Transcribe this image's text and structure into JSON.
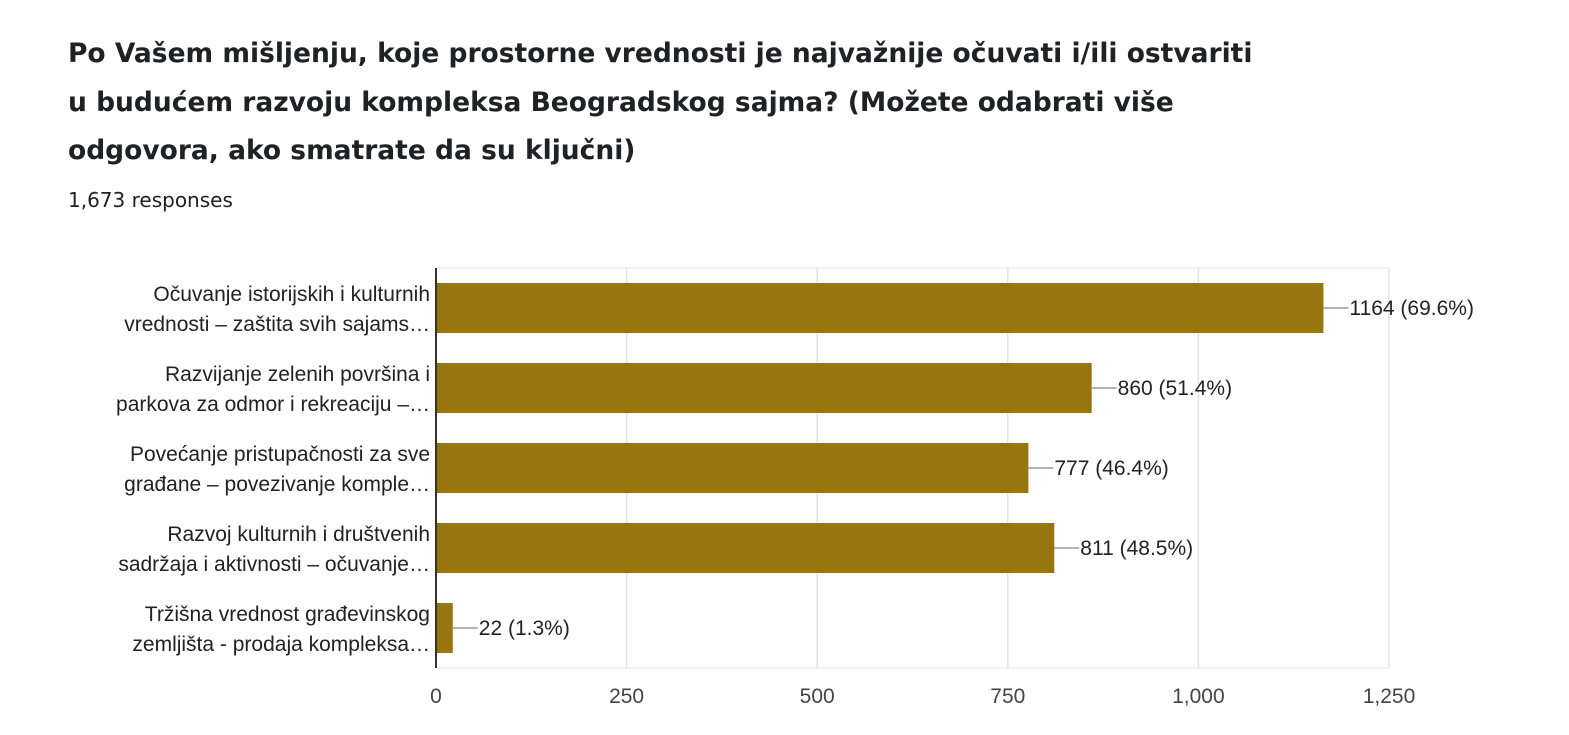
{
  "header": {
    "title": "Po Vašem mišljenju, koje prostorne vrednosti je najvažnije očuvati i/ili ostvariti u budućem razvoju kompleksa Beogradskog sajma? (Možete odabrati više odgovora, ako smatrate da su ključni)",
    "responses": "1,673 responses"
  },
  "chart_data": {
    "type": "bar",
    "orientation": "horizontal",
    "categories": [
      [
        "Očuvanje istorijskih i kulturnih",
        "vrednosti – zaštita svih sajams…"
      ],
      [
        "Razvijanje zelenih površina i",
        "parkova za odmor i rekreaciju –…"
      ],
      [
        "Povećanje pristupačnosti za sve",
        "građane – povezivanje komple…"
      ],
      [
        "Razvoj kulturnih i društvenih",
        "sadržaja i aktivnosti – očuvanje…"
      ],
      [
        "Tržišna vrednost građevinskog",
        "zemljišta - prodaja kompleksa…"
      ]
    ],
    "values": [
      1164,
      860,
      777,
      811,
      22
    ],
    "value_labels": [
      "1164 (69.6%)",
      "860 (51.4%)",
      "777 (46.4%)",
      "811 (48.5%)",
      "22 (1.3%)"
    ],
    "xlim": [
      0,
      1250
    ],
    "ticks": [
      0,
      250,
      500,
      750,
      1000,
      1250
    ],
    "tick_labels": [
      "0",
      "250",
      "500",
      "750",
      "1,000",
      "1,250"
    ],
    "grid": true,
    "colors": {
      "bar": "#977610",
      "grid": "#e3e3e3",
      "axis": "#333333",
      "leader": "#999999"
    }
  }
}
